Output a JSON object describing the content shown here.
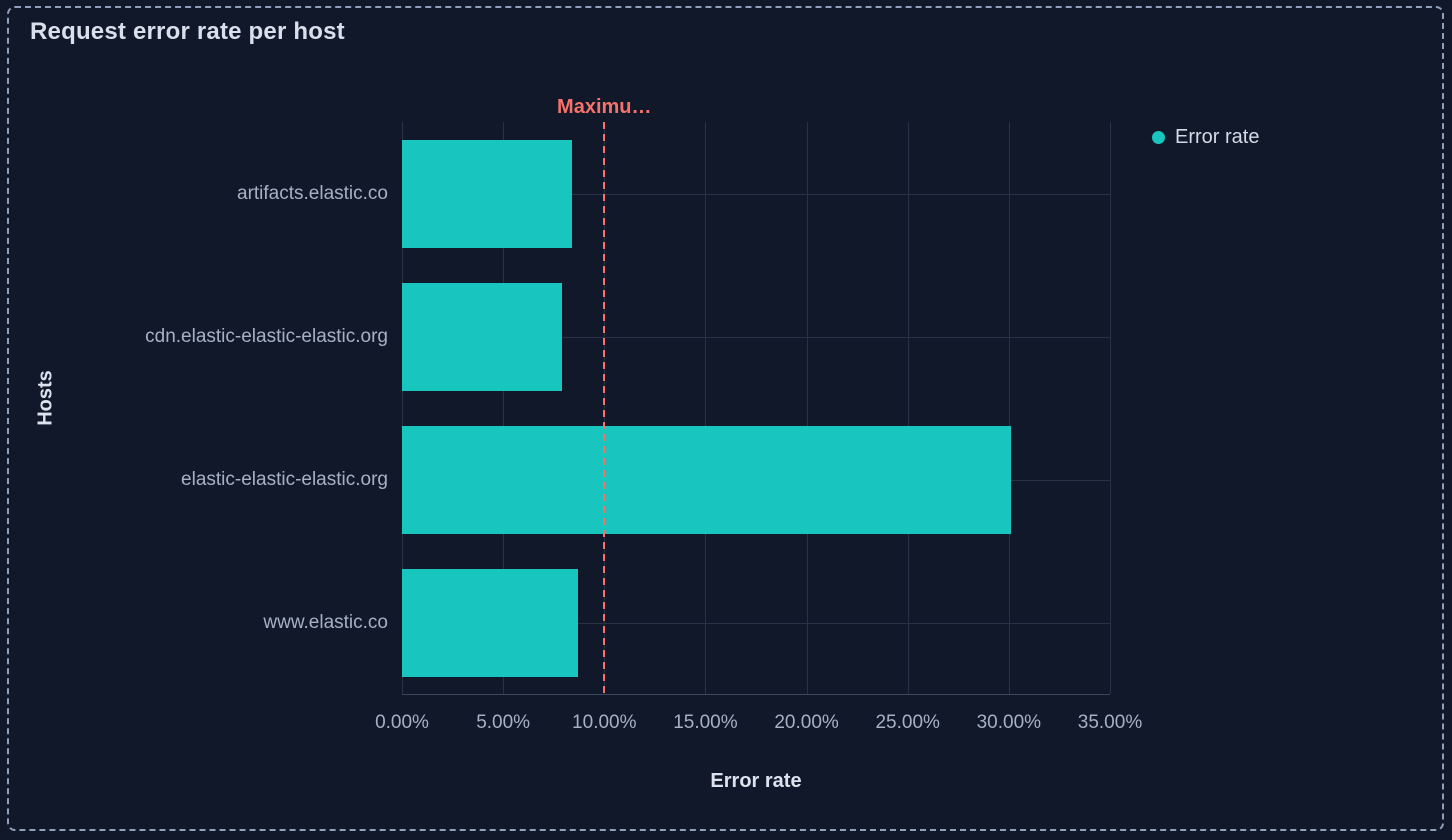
{
  "panel": {
    "title": "Request error rate per host"
  },
  "legend": {
    "items": [
      {
        "label": "Error rate",
        "color": "#18C5BF"
      }
    ],
    "position": "right"
  },
  "annotation": {
    "label": "Maximu…",
    "value": 10,
    "color": "#F6726A",
    "style": "dashed-vertical-line"
  },
  "chart_data": {
    "type": "bar",
    "orientation": "horizontal",
    "title": "Request error rate per host",
    "categories": [
      "artifacts.elastic.co",
      "cdn.elastic-elastic-elastic.org",
      "elastic-elastic-elastic.org",
      "www.elastic.co"
    ],
    "series": [
      {
        "name": "Error rate",
        "values": [
          8.4,
          7.9,
          30.1,
          8.7
        ],
        "unit": "%",
        "color": "#18C5BF"
      }
    ],
    "xlabel": "Error rate",
    "ylabel": "Hosts",
    "xlim": [
      0,
      35
    ],
    "x_tick_values": [
      0,
      5,
      10,
      15,
      20,
      25,
      30,
      35
    ],
    "x_tick_labels": [
      "0.00%",
      "5.00%",
      "10.00%",
      "15.00%",
      "20.00%",
      "25.00%",
      "30.00%",
      "35.00%"
    ],
    "grid": true,
    "legend_position": "right",
    "threshold": {
      "label": "Maximu…",
      "value": 10
    }
  },
  "colors": {
    "background": "#101829",
    "bar": "#18C5BF",
    "threshold": "#F6726A",
    "gridline": "#2A3346",
    "axis_line": "#3C475E",
    "tick_text": "#A6B1C4",
    "title_text": "#D9E0EC",
    "border": "#8FA0BC"
  }
}
